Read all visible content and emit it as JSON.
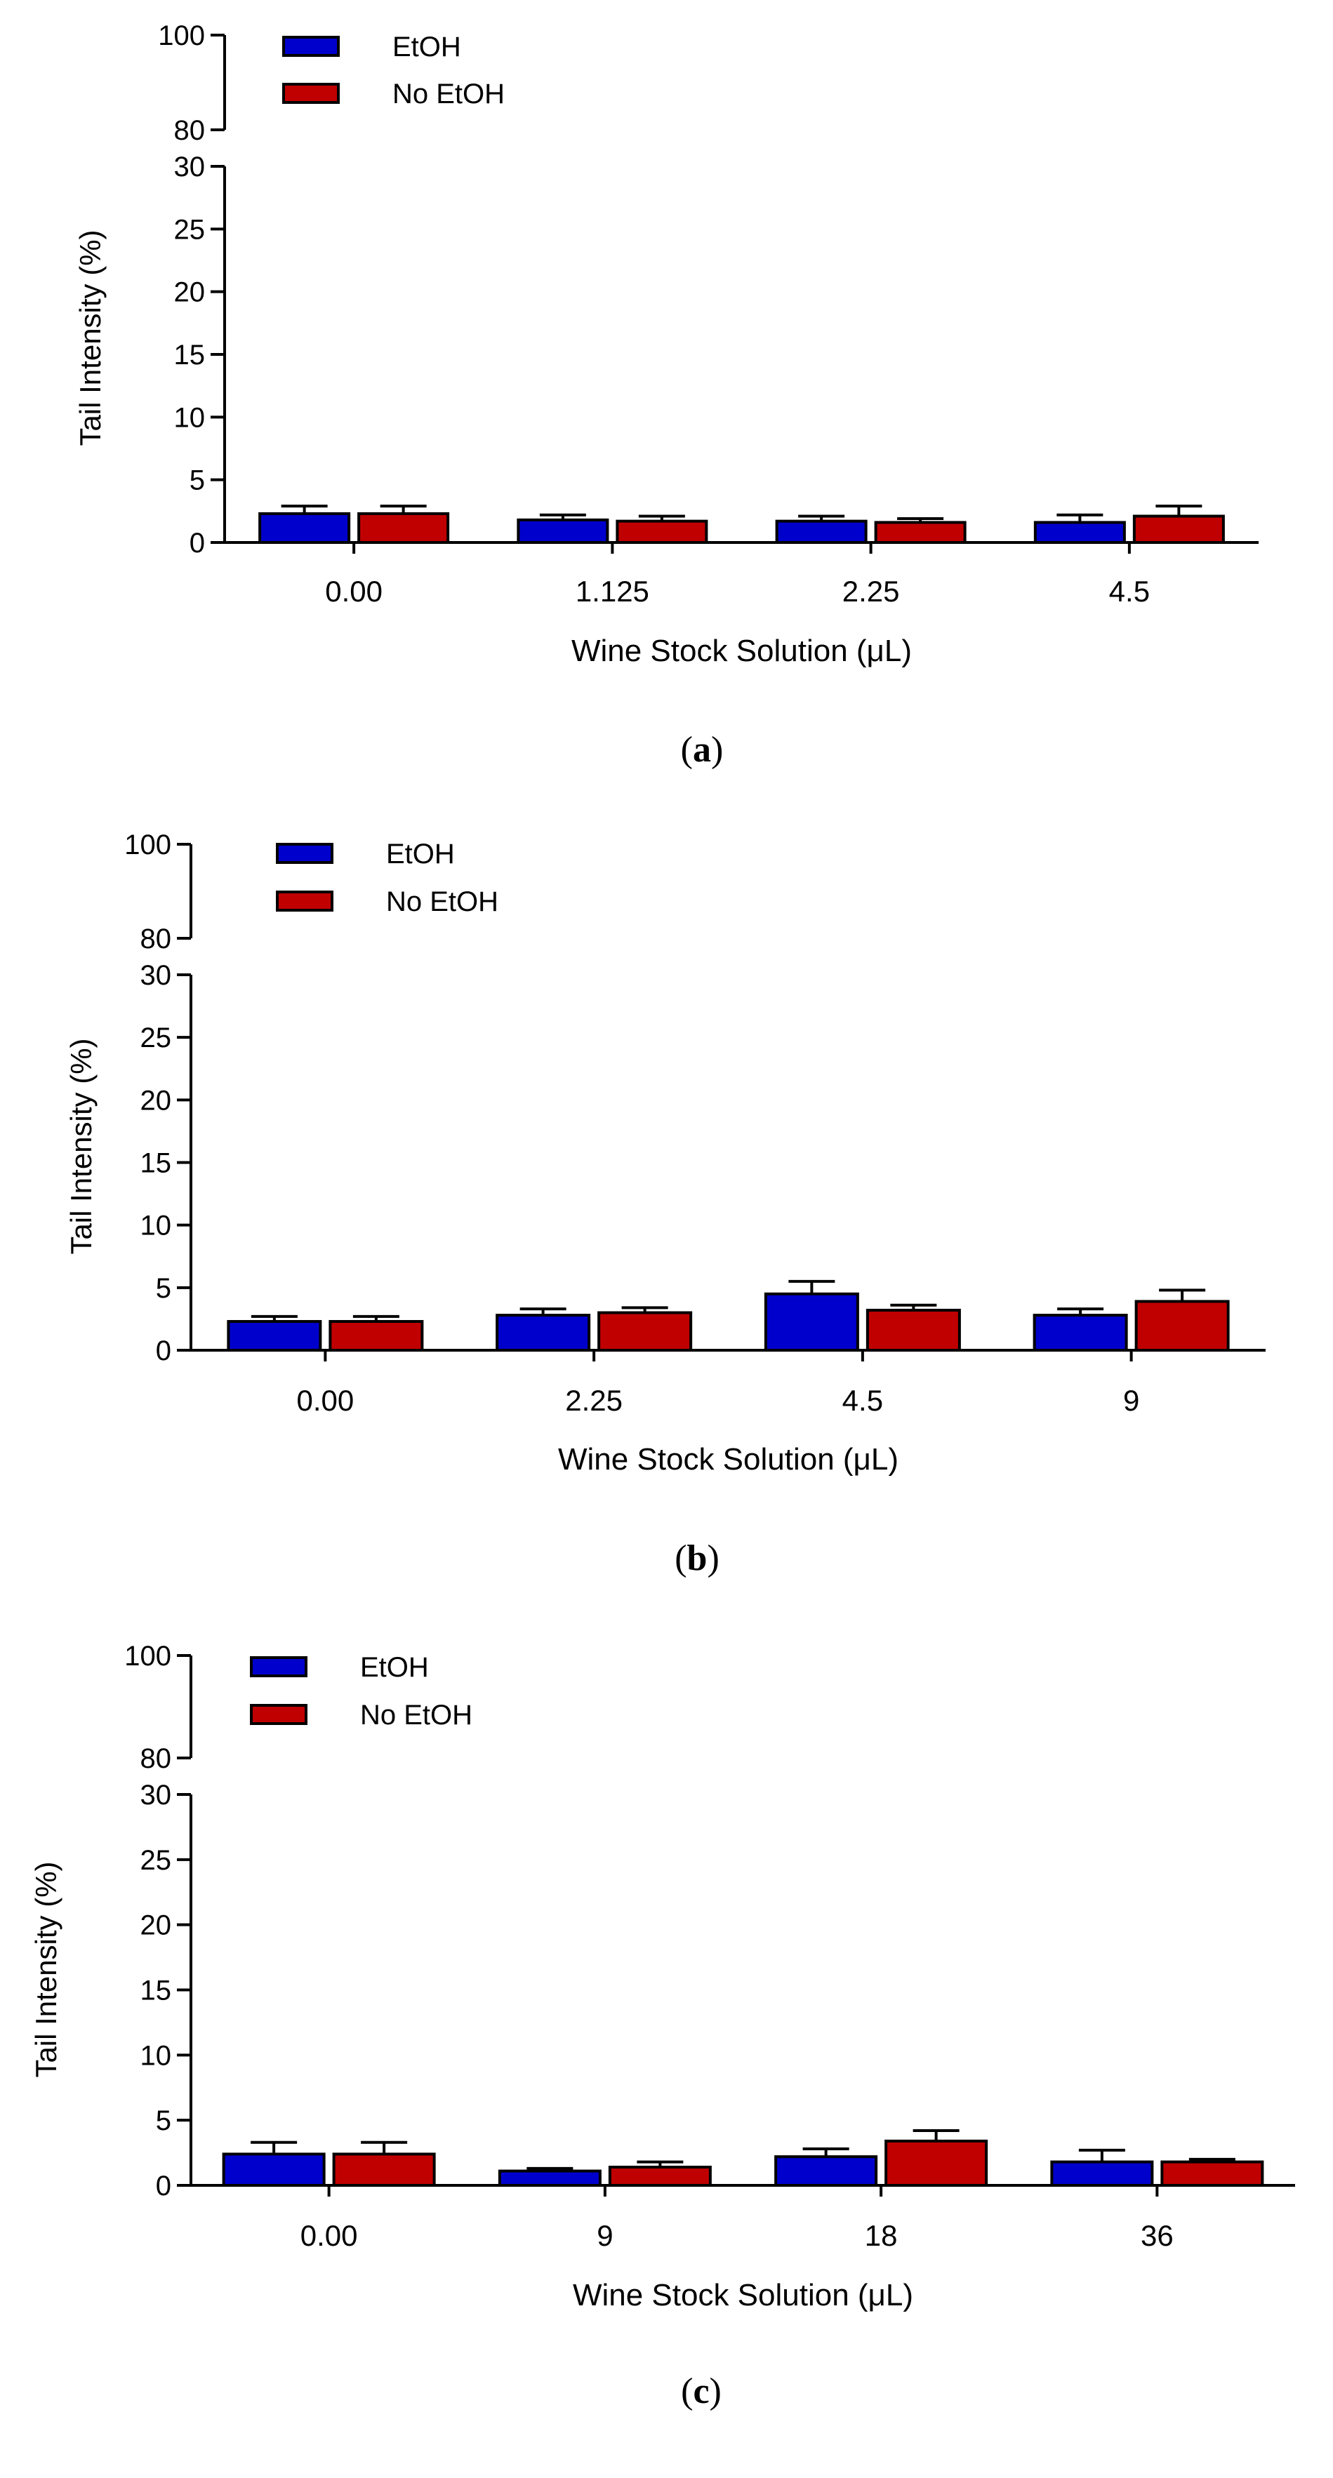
{
  "chart_data": [
    {
      "type": "bar",
      "panel_label": "a",
      "xlabel": "Wine Stock Solution (μL)",
      "ylabel": "Tail Intensity (%)",
      "categories": [
        "0.00",
        "1.125",
        "2.25",
        "4.5"
      ],
      "series": [
        {
          "name": "EtOH",
          "color": "#0000cc",
          "values": [
            2.3,
            1.8,
            1.7,
            1.6
          ],
          "errors": [
            0.6,
            0.4,
            0.4,
            0.6
          ]
        },
        {
          "name": "No EtOH",
          "color": "#c00000",
          "values": [
            2.3,
            1.7,
            1.6,
            2.1
          ],
          "errors": [
            0.6,
            0.4,
            0.3,
            0.8
          ]
        }
      ],
      "y_segments": [
        {
          "range": [
            0,
            30
          ],
          "ticks": [
            "0",
            "5",
            "10",
            "15",
            "20",
            "25",
            "30"
          ]
        },
        {
          "range": [
            80,
            100
          ],
          "ticks": [
            "80",
            "100"
          ]
        }
      ],
      "legend_position": "top-left"
    },
    {
      "type": "bar",
      "panel_label": "b",
      "xlabel": "Wine Stock Solution (μL)",
      "ylabel": "Tail Intensity (%)",
      "categories": [
        "0.00",
        "2.25",
        "4.5",
        "9"
      ],
      "series": [
        {
          "name": "EtOH",
          "color": "#0000cc",
          "values": [
            2.3,
            2.8,
            4.5,
            2.8
          ],
          "errors": [
            0.4,
            0.5,
            1.0,
            0.5
          ]
        },
        {
          "name": "No EtOH",
          "color": "#c00000",
          "values": [
            2.3,
            3.0,
            3.2,
            3.9
          ],
          "errors": [
            0.4,
            0.4,
            0.4,
            0.9
          ]
        }
      ],
      "y_segments": [
        {
          "range": [
            0,
            30
          ],
          "ticks": [
            "0",
            "5",
            "10",
            "15",
            "20",
            "25",
            "30"
          ]
        },
        {
          "range": [
            80,
            100
          ],
          "ticks": [
            "80",
            "100"
          ]
        }
      ],
      "legend_position": "top-left"
    },
    {
      "type": "bar",
      "panel_label": "c",
      "xlabel": "Wine Stock Solution (μL)",
      "ylabel": "Tail Intensity (%)",
      "categories": [
        "0.00",
        "9",
        "18",
        "36"
      ],
      "series": [
        {
          "name": "EtOH",
          "color": "#0000cc",
          "values": [
            2.4,
            1.1,
            2.2,
            1.8
          ],
          "errors": [
            0.9,
            0.2,
            0.6,
            0.9
          ]
        },
        {
          "name": "No EtOH",
          "color": "#c00000",
          "values": [
            2.4,
            1.4,
            3.4,
            1.8
          ],
          "errors": [
            0.9,
            0.4,
            0.8,
            0.2
          ]
        }
      ],
      "y_segments": [
        {
          "range": [
            0,
            30
          ],
          "ticks": [
            "0",
            "5",
            "10",
            "15",
            "20",
            "25",
            "30"
          ]
        },
        {
          "range": [
            80,
            100
          ],
          "ticks": [
            "80",
            "100"
          ]
        }
      ],
      "legend_position": "top-left"
    }
  ]
}
